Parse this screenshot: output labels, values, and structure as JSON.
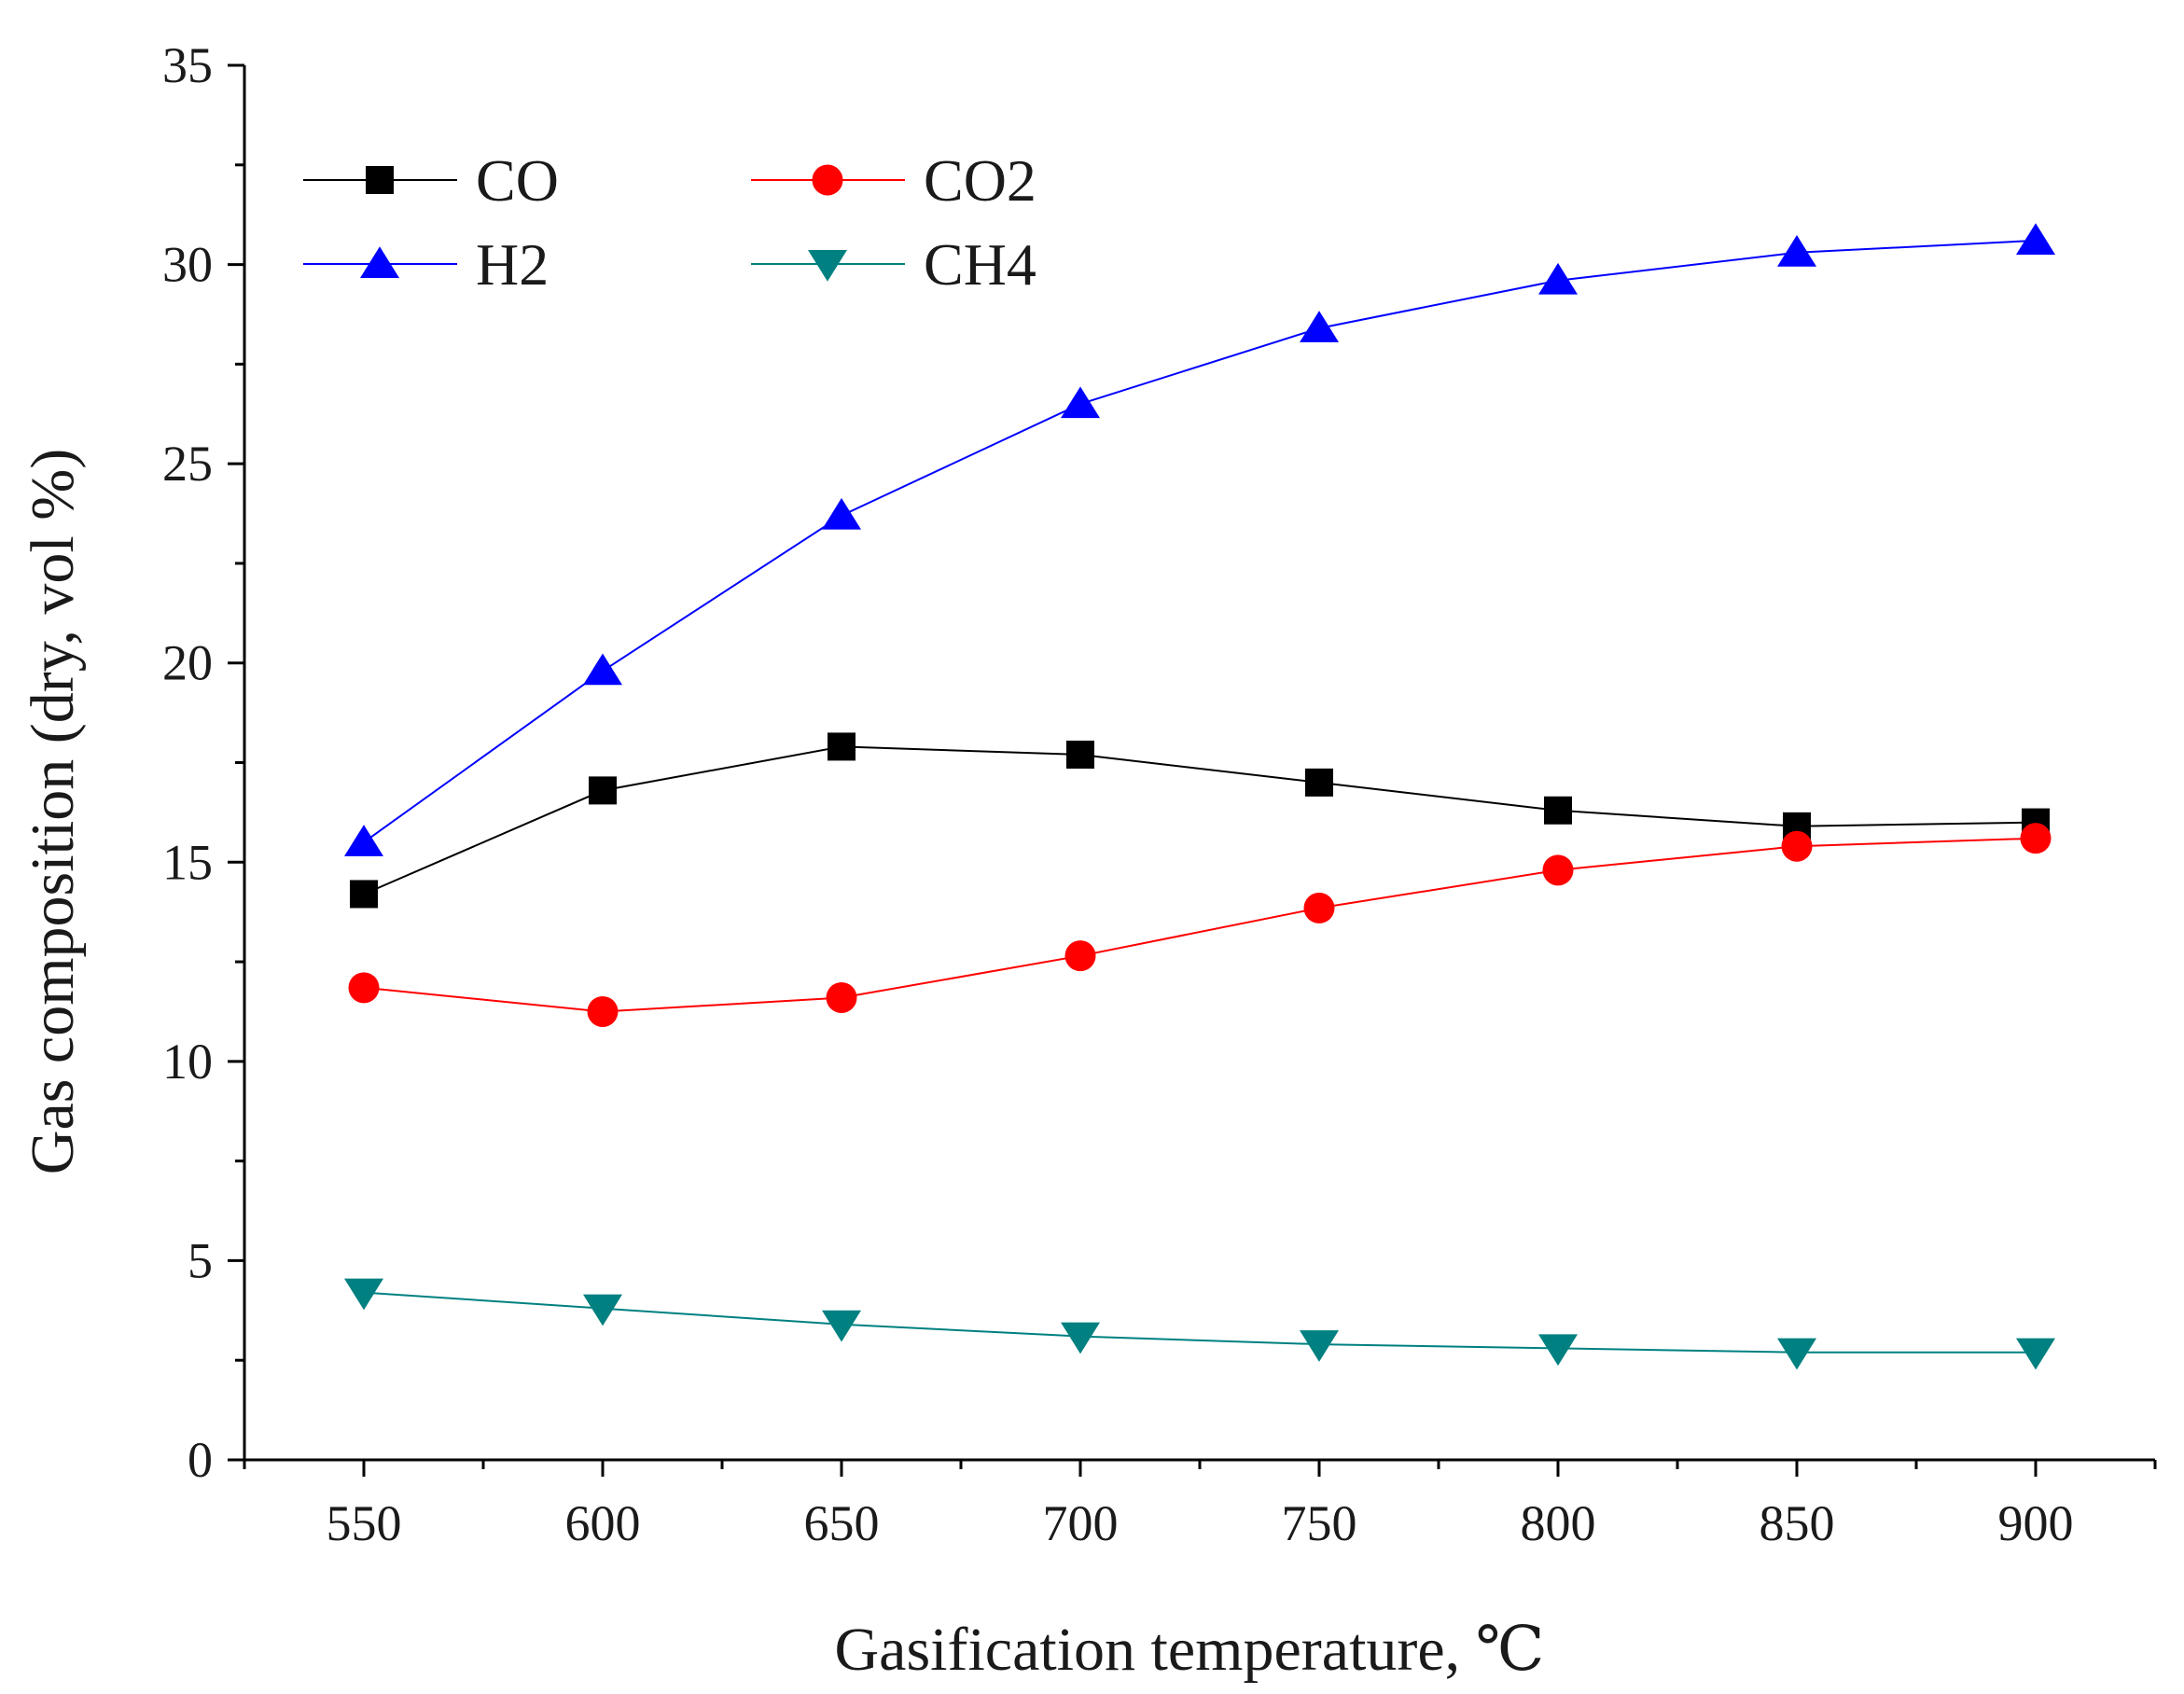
{
  "chart_data": {
    "type": "line",
    "title": "",
    "xlabel": "Gasification temperature, ℃",
    "ylabel": "Gas composition (dry, vol %)",
    "x": [
      550,
      600,
      650,
      700,
      750,
      800,
      850,
      900
    ],
    "xlim": [
      525,
      925
    ],
    "ylim": [
      0,
      35
    ],
    "xticks": [
      550,
      600,
      650,
      700,
      750,
      800,
      850,
      900
    ],
    "yticks": [
      0,
      5,
      10,
      15,
      20,
      25,
      30,
      35
    ],
    "grid": false,
    "legend_position": "top-left",
    "series": [
      {
        "name": "CO",
        "color": "#000000",
        "marker": "square",
        "values": [
          14.2,
          16.8,
          17.9,
          17.7,
          17.0,
          16.3,
          15.9,
          16.0
        ]
      },
      {
        "name": "CO2",
        "color": "#ff0000",
        "marker": "circle",
        "values": [
          11.85,
          11.25,
          11.6,
          12.65,
          13.85,
          14.8,
          15.4,
          15.6
        ]
      },
      {
        "name": "H2",
        "color": "#0000ff",
        "marker": "triangle-up",
        "values": [
          15.5,
          19.8,
          23.7,
          26.5,
          28.4,
          29.6,
          30.3,
          30.6
        ]
      },
      {
        "name": "CH4",
        "color": "#008080",
        "marker": "triangle-down",
        "values": [
          4.2,
          3.8,
          3.4,
          3.1,
          2.9,
          2.8,
          2.7,
          2.7
        ]
      }
    ]
  }
}
